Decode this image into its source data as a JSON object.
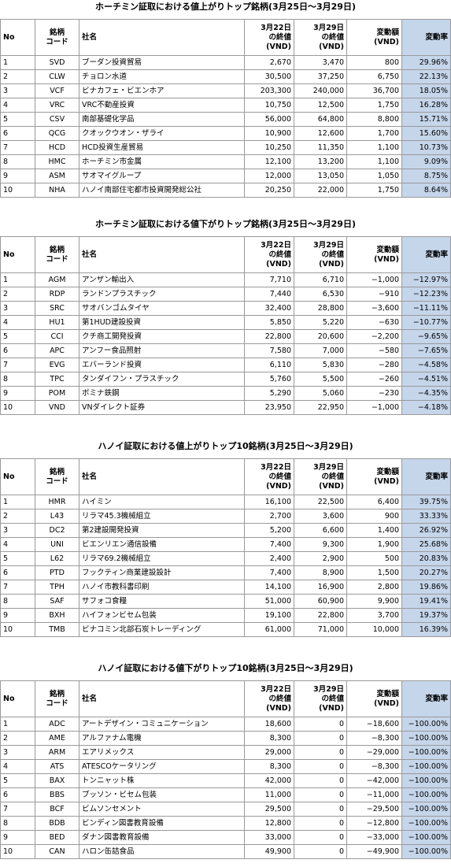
{
  "tables": [
    {
      "title": "ホーチミン証取における値上がりトップ銘柄(3月25日～3月29日)",
      "header": [
        "No",
        "銘柄\nコード",
        "社名",
        "3月22日\nの終値\n(VND)",
        "3月29日\nの終値\n(VND)",
        "変動額\n(VND)",
        "変動率"
      ],
      "rows": [
        [
          "1",
          "SVD",
          "ブーダン投資貿易",
          "2,670",
          "3,470",
          "800",
          "29.96%"
        ],
        [
          "2",
          "CLW",
          "チョロン水道",
          "30,500",
          "37,250",
          "6,750",
          "22.13%"
        ],
        [
          "3",
          "VCF",
          "ビナカフェ・ビエンホア",
          "203,300",
          "240,000",
          "36,700",
          "18.05%"
        ],
        [
          "4",
          "VRC",
          "VRC不動産投資",
          "10,750",
          "12,500",
          "1,750",
          "16.28%"
        ],
        [
          "5",
          "CSV",
          "南部基礎化学品",
          "56,000",
          "64,800",
          "8,800",
          "15.71%"
        ],
        [
          "6",
          "QCG",
          "クオックウオン・ザライ",
          "10,900",
          "12,600",
          "1,700",
          "15.60%"
        ],
        [
          "7",
          "HCD",
          "HCD投資生産貿易",
          "10,250",
          "11,350",
          "1,100",
          "10.73%"
        ],
        [
          "8",
          "HMC",
          "ホーチミン市金属",
          "12,100",
          "13,200",
          "1,100",
          "9.09%"
        ],
        [
          "9",
          "ASM",
          "サオマイグループ",
          "12,000",
          "13,050",
          "1,050",
          "8.75%"
        ],
        [
          "10",
          "NHA",
          "ハノイ南部住宅都市投資開発総公社",
          "20,250",
          "22,000",
          "1,750",
          "8.64%"
        ]
      ]
    },
    {
      "title": "ホーチミン証取における値下がりトップ銘柄(3月25日～3月29日)",
      "header": [
        "No",
        "銘柄\nコード",
        "社名",
        "3月22日\nの終値\n(VND)",
        "3月29日\nの終値\n(VND)",
        "変動額\n(VND)",
        "変動率"
      ],
      "rows": [
        [
          "1",
          "AGM",
          "アンザン輸出入",
          "7,710",
          "6,710",
          "−1,000",
          "−12.97%"
        ],
        [
          "2",
          "RDP",
          "ランドンプラスチック",
          "7,440",
          "6,530",
          "−910",
          "−12.23%"
        ],
        [
          "3",
          "SRC",
          "サオバンゴムタイヤ",
          "32,400",
          "28,800",
          "−3,600",
          "−11.11%"
        ],
        [
          "4",
          "HU1",
          "第1HUD建設投資",
          "5,850",
          "5,220",
          "−630",
          "−10.77%"
        ],
        [
          "5",
          "CCI",
          "クチ商工開発投資",
          "22,800",
          "20,600",
          "−2,200",
          "−9.65%"
        ],
        [
          "6",
          "APC",
          "アンフー食品照射",
          "7,580",
          "7,000",
          "−580",
          "−7.65%"
        ],
        [
          "7",
          "EVG",
          "エバーランド投資",
          "6,110",
          "5,830",
          "−280",
          "−4.58%"
        ],
        [
          "8",
          "TPC",
          "タンダイフン・プラスチック",
          "5,760",
          "5,500",
          "−260",
          "−4.51%"
        ],
        [
          "9",
          "POM",
          "ポミナ鉄鋼",
          "5,290",
          "5,060",
          "−230",
          "−4.35%"
        ],
        [
          "10",
          "VND",
          "VNダイレクト証券",
          "23,950",
          "22,950",
          "−1,000",
          "−4.18%"
        ]
      ]
    },
    {
      "title": "ハノイ証取における値上がりトップ10銘柄(3月25日～3月29日)",
      "header": [
        "No",
        "銘柄\nコード",
        "社名",
        "3月22日\nの終値\n(VND)",
        "3月29日\nの終値\n(VND)",
        "変動額\n(VND)",
        "変動率"
      ],
      "rows": [
        [
          "1",
          "HMR",
          "ハイミン",
          "16,100",
          "22,500",
          "6,400",
          "39.75%"
        ],
        [
          "2",
          "L43",
          "リラマ45.3機械組立",
          "2,700",
          "3,600",
          "900",
          "33.33%"
        ],
        [
          "3",
          "DC2",
          "第2建設開発投資",
          "5,200",
          "6,600",
          "1,400",
          "26.92%"
        ],
        [
          "4",
          "UNI",
          "ビエンリエン通信設備",
          "7,400",
          "9,300",
          "1,900",
          "25.68%"
        ],
        [
          "5",
          "L62",
          "リラマ69.2機械組立",
          "2,400",
          "2,900",
          "500",
          "20.83%"
        ],
        [
          "6",
          "PTD",
          "フックティン商業建設設計",
          "7,400",
          "8,900",
          "1,500",
          "20.27%"
        ],
        [
          "7",
          "TPH",
          "ハノイ市教科書印刷",
          "14,100",
          "16,900",
          "2,800",
          "19.86%"
        ],
        [
          "8",
          "SAF",
          "サフォコ食糧",
          "51,000",
          "60,900",
          "9,900",
          "19.41%"
        ],
        [
          "9",
          "BXH",
          "ハイフォンビセム包装",
          "19,100",
          "22,800",
          "3,700",
          "19.37%"
        ],
        [
          "10",
          "TMB",
          "ビナコミン北部石炭トレーディング",
          "61,000",
          "71,000",
          "10,000",
          "16.39%"
        ]
      ]
    },
    {
      "title": "ハノイ証取における値下がりトップ10銘柄(3月25日～3月29日)",
      "header": [
        "No",
        "銘柄\nコード",
        "社名",
        "3月22日\nの終値\n(VND)",
        "3月29日\nの終値\n(VND)",
        "変動額\n(VND)",
        "変動率"
      ],
      "rows": [
        [
          "1",
          "ADC",
          "アートデザイン・コミュニケーション",
          "18,600",
          "0",
          "−18,600",
          "−100.00%"
        ],
        [
          "2",
          "AME",
          "アルファナム電機",
          "8,300",
          "0",
          "−8,300",
          "−100.00%"
        ],
        [
          "3",
          "ARM",
          "エアリメックス",
          "29,000",
          "0",
          "−29,000",
          "−100.00%"
        ],
        [
          "4",
          "ATS",
          "ATESCOケータリング",
          "8,300",
          "0",
          "−8,300",
          "−100.00%"
        ],
        [
          "5",
          "BAX",
          "トンニャット株",
          "42,000",
          "0",
          "−42,000",
          "−100.00%"
        ],
        [
          "6",
          "BBS",
          "ブッソン・ビセム包装",
          "11,000",
          "0",
          "−11,000",
          "−100.00%"
        ],
        [
          "7",
          "BCF",
          "ビムソンセメント",
          "29,500",
          "0",
          "−29,500",
          "−100.00%"
        ],
        [
          "8",
          "BDB",
          "ビンディン図書教育設備",
          "12,800",
          "0",
          "−12,800",
          "−100.00%"
        ],
        [
          "9",
          "BED",
          "ダナン図書教育設備",
          "33,000",
          "0",
          "−33,000",
          "−100.00%"
        ],
        [
          "10",
          "CAN",
          "ハロン缶詰食品",
          "49,900",
          "0",
          "−49,900",
          "−100.00%"
        ]
      ]
    }
  ]
}
